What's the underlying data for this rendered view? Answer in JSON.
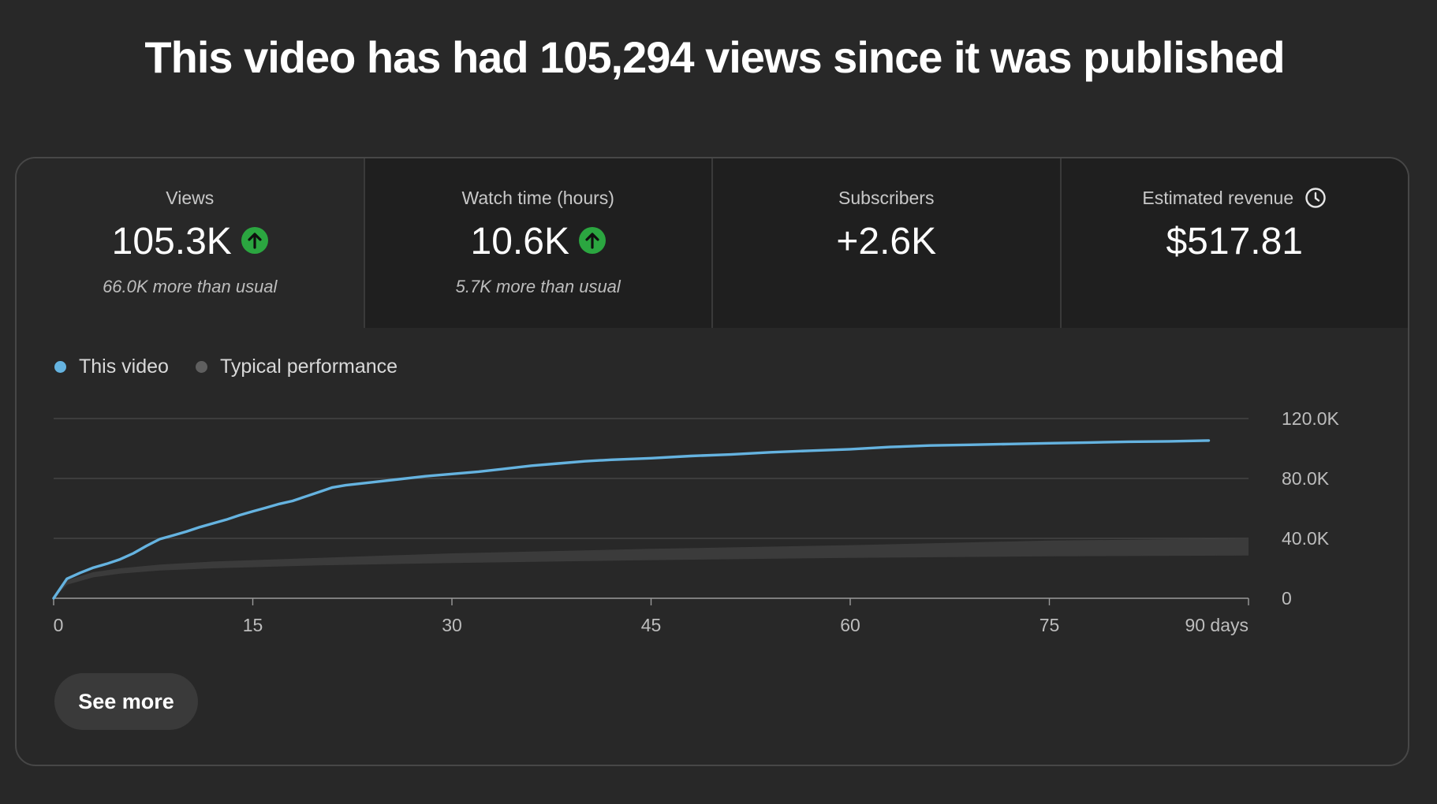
{
  "headline": "This video has had 105,294 views since it was published",
  "metrics": [
    {
      "label": "Views",
      "value": "105.3K",
      "trend_icon": "arrow-up-icon",
      "sub": "66.0K more than usual"
    },
    {
      "label": "Watch time (hours)",
      "value": "10.6K",
      "trend_icon": "arrow-up-icon",
      "sub": "5.7K more than usual"
    },
    {
      "label": "Subscribers",
      "value": "+2.6K",
      "sub": ""
    },
    {
      "label": "Estimated revenue",
      "value": "$517.81",
      "label_icon": "clock-icon",
      "sub": ""
    }
  ],
  "legend": [
    {
      "label": "This video",
      "color": "#65b3e0"
    },
    {
      "label": "Typical performance",
      "color": "#5f5f5f"
    }
  ],
  "see_more_label": "See more",
  "colors": {
    "up": "#2ba640",
    "line": "#65b3e0",
    "band": "#3b3b3b"
  },
  "chart_data": {
    "type": "line",
    "xlabel": "days",
    "x_ticks": [
      "0",
      "15",
      "30",
      "45",
      "60",
      "75",
      "90 days"
    ],
    "x_tick_values": [
      0,
      15,
      30,
      45,
      60,
      75,
      90
    ],
    "y_ticks": [
      "0",
      "40.0K",
      "80.0K",
      "120.0K"
    ],
    "y_tick_values": [
      0,
      40000,
      80000,
      120000
    ],
    "xlim": [
      0,
      90
    ],
    "ylim": [
      0,
      120000
    ],
    "series": [
      {
        "name": "This video",
        "x": [
          0,
          1,
          2,
          3,
          4,
          5,
          6,
          7,
          8,
          9,
          10,
          11,
          12,
          13,
          14,
          15,
          16,
          17,
          18,
          19,
          20,
          21,
          22,
          23,
          24,
          26,
          28,
          30,
          32,
          34,
          36,
          38,
          40,
          42,
          45,
          48,
          51,
          54,
          57,
          60,
          63,
          66,
          69,
          72,
          75,
          78,
          81,
          84,
          87
        ],
        "values": [
          0,
          13000,
          17000,
          20500,
          23000,
          26000,
          30000,
          35000,
          39500,
          42000,
          44500,
          47500,
          50000,
          52500,
          55500,
          58000,
          60500,
          63000,
          65000,
          68000,
          71000,
          74000,
          75500,
          76500,
          77500,
          79500,
          81500,
          83000,
          84500,
          86500,
          88500,
          90000,
          91500,
          92500,
          93500,
          95000,
          96000,
          97500,
          98500,
          99500,
          101000,
          102000,
          102500,
          103000,
          103500,
          104000,
          104500,
          104800,
          105294
        ]
      },
      {
        "name": "Typical performance",
        "x": [
          0,
          1,
          3,
          5,
          8,
          12,
          20,
          30,
          45,
          60,
          75,
          90
        ],
        "lower": [
          0,
          9000,
          14000,
          16500,
          18500,
          20000,
          22000,
          23500,
          25500,
          27000,
          28000,
          28500
        ],
        "upper": [
          0,
          12000,
          17500,
          20000,
          22500,
          24500,
          27000,
          30000,
          33000,
          35500,
          38500,
          40000
        ]
      }
    ]
  }
}
